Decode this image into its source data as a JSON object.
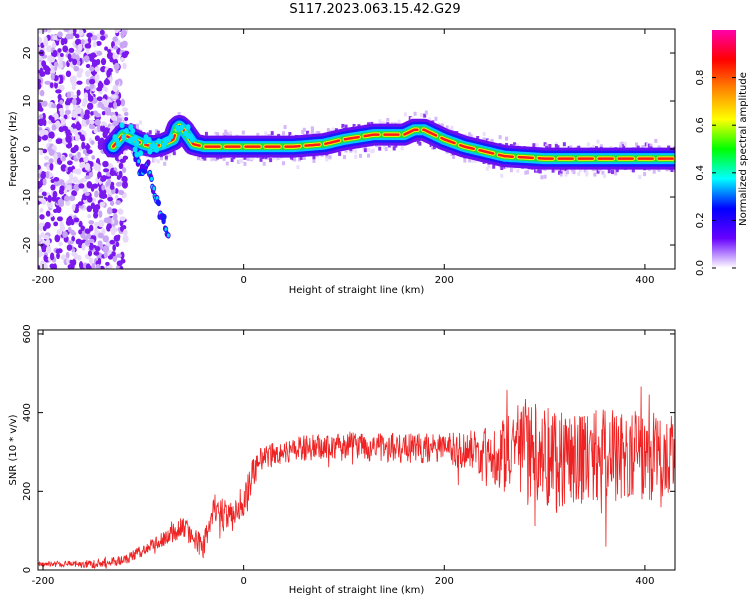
{
  "title": "S117.2023.063.15.42.G29",
  "chart_data": [
    {
      "type": "heatmap",
      "xlabel": "Height of straight line (km)",
      "ylabel": "Frequency (Hz)",
      "xlim": [
        -205,
        430
      ],
      "ylim": [
        -25,
        25
      ],
      "x_ticks": [
        -200,
        0,
        200,
        400
      ],
      "y_ticks": [
        20,
        10,
        0,
        -10,
        -20
      ],
      "colorbar": {
        "label": "Normalized spectral amplitude",
        "range": [
          0,
          1
        ],
        "ticks": [
          "0.0",
          "0.2",
          "0.4",
          "0.6",
          "0.8"
        ],
        "colors": [
          "#ffffff",
          "#6600ff",
          "#0000ff",
          "#00ffff",
          "#00ff00",
          "#ffff00",
          "#ff8800",
          "#ff0000",
          "#ff00aa"
        ]
      },
      "ridge": {
        "x": [
          -130,
          -120,
          -110,
          -100,
          -90,
          -80,
          -70,
          -65,
          -60,
          -50,
          -40,
          -30,
          -20,
          0,
          20,
          50,
          80,
          100,
          130,
          160,
          170,
          180,
          200,
          220,
          240,
          260,
          300,
          350,
          400,
          430
        ],
        "y": [
          0.5,
          3,
          2,
          1,
          0.5,
          1,
          2,
          5,
          4,
          1,
          0.5,
          0.5,
          0.5,
          0.5,
          0.5,
          0.5,
          1,
          2,
          3,
          3,
          4,
          4,
          2,
          0.5,
          -0.5,
          -1.5,
          -2,
          -2,
          -2,
          -2
        ]
      },
      "branch": {
        "x": [
          -115,
          -110,
          -105,
          -100,
          -95,
          -90,
          -85,
          -80,
          -75
        ],
        "y": [
          5,
          0,
          -3,
          -5,
          -3,
          -8,
          -12,
          -15,
          -18
        ]
      }
    },
    {
      "type": "line",
      "xlabel": "Height of straight line (km)",
      "ylabel": "SNR (10 * v/v)",
      "xlim": [
        -205,
        430
      ],
      "ylim": [
        0,
        610
      ],
      "x_ticks": [
        -200,
        0,
        200,
        400
      ],
      "y_ticks": [
        0,
        200,
        400,
        600
      ],
      "color": "#ee2222",
      "envelope": {
        "x": [
          -205,
          -150,
          -120,
          -100,
          -80,
          -60,
          -50,
          -40,
          -30,
          -20,
          -10,
          0,
          10,
          20,
          40,
          60,
          100,
          150,
          200,
          240,
          260,
          280,
          300,
          330,
          360,
          400,
          430
        ],
        "y": [
          15,
          15,
          25,
          50,
          80,
          110,
          80,
          60,
          160,
          140,
          140,
          180,
          250,
          290,
          300,
          310,
          315,
          310,
          310,
          300,
          290,
          290,
          290,
          290,
          290,
          290,
          290
        ]
      },
      "noise": {
        "x": [
          -205,
          -100,
          -50,
          0,
          20,
          200,
          240,
          280,
          300,
          350,
          430
        ],
        "y": [
          6,
          15,
          30,
          45,
          30,
          40,
          60,
          130,
          140,
          120,
          110
        ]
      }
    }
  ]
}
